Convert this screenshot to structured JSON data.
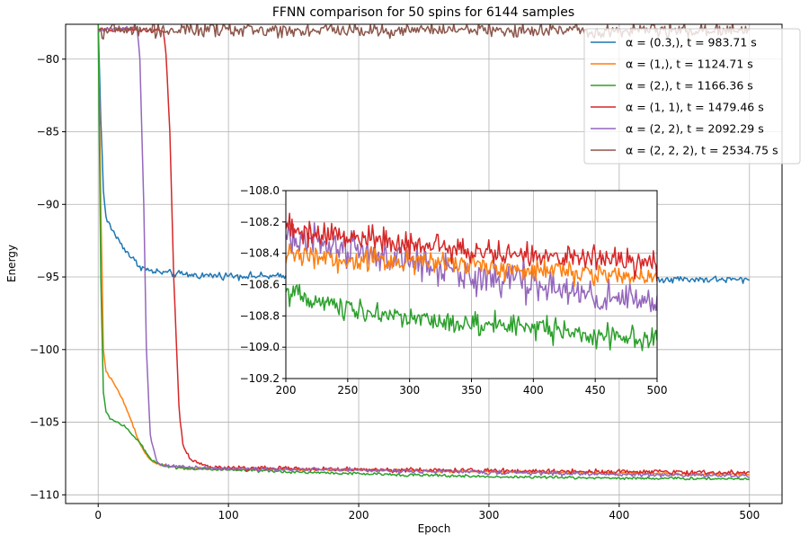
{
  "chart_data": [
    {
      "id": "main",
      "type": "line",
      "title": "FFNN comparison for 50 spins for 6144 samples",
      "xlabel": "Epoch",
      "ylabel": "Energy",
      "xlim": [
        -25,
        525
      ],
      "ylim": [
        -110.6,
        -77.6
      ],
      "xticks": [
        0,
        100,
        200,
        300,
        400,
        500
      ],
      "xtick_labels": [
        "0",
        "100",
        "200",
        "300",
        "400",
        "500"
      ],
      "yticks": [
        -80,
        -85,
        -90,
        -95,
        -100,
        -105,
        -110
      ],
      "ytick_labels": [
        "−80",
        "−85",
        "−90",
        "−95",
        "−100",
        "−105",
        "−110"
      ],
      "grid": true,
      "legend_position": "top-right",
      "series": [
        {
          "name": "α = (0.3,), t = 983.71 s",
          "color": "#1f77b4",
          "points": [
            [
              0,
              -77.5
            ],
            [
              2,
              -84
            ],
            [
              4,
              -89
            ],
            [
              6,
              -91
            ],
            [
              10,
              -91.6
            ],
            [
              15,
              -92.4
            ],
            [
              20,
              -93
            ],
            [
              25,
              -93.6
            ],
            [
              30,
              -94.1
            ],
            [
              35,
              -94.4
            ],
            [
              40,
              -94.6
            ],
            [
              50,
              -94.7
            ],
            [
              60,
              -94.8
            ],
            [
              80,
              -94.9
            ],
            [
              100,
              -94.9
            ],
            [
              150,
              -95
            ],
            [
              200,
              -95
            ],
            [
              250,
              -95
            ],
            [
              300,
              -95.05
            ],
            [
              350,
              -95.1
            ],
            [
              400,
              -95.1
            ],
            [
              450,
              -95.15
            ],
            [
              500,
              -95.2
            ]
          ],
          "noise": 0.15
        },
        {
          "name": "α = (1,), t = 1124.71 s",
          "color": "#ff7f0e",
          "points": [
            [
              0,
              -77.5
            ],
            [
              2,
              -90
            ],
            [
              4,
              -100
            ],
            [
              6,
              -101.5
            ],
            [
              10,
              -102
            ],
            [
              15,
              -102.8
            ],
            [
              20,
              -103.7
            ],
            [
              25,
              -104.8
            ],
            [
              30,
              -106
            ],
            [
              35,
              -107
            ],
            [
              40,
              -107.6
            ],
            [
              50,
              -108
            ],
            [
              70,
              -108.2
            ],
            [
              100,
              -108.2
            ],
            [
              200,
              -108.3
            ],
            [
              300,
              -108.4
            ],
            [
              400,
              -108.5
            ],
            [
              500,
              -108.6
            ]
          ],
          "noise": 0.06
        },
        {
          "name": "α = (2,), t = 1166.36 s",
          "color": "#2ca02c",
          "points": [
            [
              0,
              -77.5
            ],
            [
              2,
              -95
            ],
            [
              4,
              -103
            ],
            [
              6,
              -104.3
            ],
            [
              10,
              -104.8
            ],
            [
              15,
              -105
            ],
            [
              20,
              -105.3
            ],
            [
              30,
              -106.2
            ],
            [
              40,
              -107.5
            ],
            [
              50,
              -108
            ],
            [
              70,
              -108.2
            ],
            [
              100,
              -108.3
            ],
            [
              200,
              -108.55
            ],
            [
              300,
              -108.75
            ],
            [
              400,
              -108.85
            ],
            [
              500,
              -108.9
            ]
          ],
          "noise": 0.06
        },
        {
          "name": "α = (1, 1), t = 1479.46 s",
          "color": "#d62728",
          "points": [
            [
              0,
              -78
            ],
            [
              20,
              -78
            ],
            [
              40,
              -78
            ],
            [
              50,
              -78.1
            ],
            [
              52,
              -79.5
            ],
            [
              55,
              -85
            ],
            [
              58,
              -95
            ],
            [
              62,
              -104
            ],
            [
              65,
              -106.5
            ],
            [
              70,
              -107.5
            ],
            [
              80,
              -108
            ],
            [
              100,
              -108.15
            ],
            [
              200,
              -108.25
            ],
            [
              300,
              -108.35
            ],
            [
              400,
              -108.4
            ],
            [
              500,
              -108.5
            ]
          ],
          "noise": 0.1
        },
        {
          "name": "α = (2, 2), t = 2092.29 s",
          "color": "#9467bd",
          "points": [
            [
              0,
              -78
            ],
            [
              20,
              -77.9
            ],
            [
              28,
              -77.8
            ],
            [
              30,
              -78
            ],
            [
              32,
              -80
            ],
            [
              35,
              -90
            ],
            [
              37,
              -100
            ],
            [
              40,
              -106
            ],
            [
              45,
              -107.7
            ],
            [
              50,
              -108
            ],
            [
              100,
              -108.2
            ],
            [
              200,
              -108.3
            ],
            [
              300,
              -108.45
            ],
            [
              400,
              -108.6
            ],
            [
              500,
              -108.7
            ]
          ],
          "noise": 0.08
        },
        {
          "name": "α = (2, 2, 2), t = 2534.75 s",
          "color": "#8c564b",
          "points": [
            [
              0,
              -78
            ],
            [
              100,
              -78
            ],
            [
              200,
              -78
            ],
            [
              300,
              -78
            ],
            [
              400,
              -78
            ],
            [
              500,
              -78
            ]
          ],
          "noise": 0.3
        }
      ]
    },
    {
      "id": "inset",
      "type": "line",
      "xlim": [
        200,
        500
      ],
      "ylim": [
        -109.2,
        -108.0
      ],
      "xticks": [
        200,
        250,
        300,
        350,
        400,
        450,
        500
      ],
      "xtick_labels": [
        "200",
        "250",
        "300",
        "350",
        "400",
        "450",
        "500"
      ],
      "yticks": [
        -108.0,
        -108.2,
        -108.4,
        -108.6,
        -108.8,
        -109.0,
        -109.2
      ],
      "ytick_labels": [
        "−108.0",
        "−108.2",
        "−108.4",
        "−108.6",
        "−108.8",
        "−109.0",
        "−109.2"
      ],
      "grid": true,
      "series": [
        {
          "color": "#9467bd",
          "points": [
            [
              200,
              -108.3
            ],
            [
              250,
              -108.38
            ],
            [
              300,
              -108.45
            ],
            [
              350,
              -108.55
            ],
            [
              400,
              -108.6
            ],
            [
              450,
              -108.68
            ],
            [
              500,
              -108.72
            ]
          ],
          "noise": 0.07
        },
        {
          "color": "#ff7f0e",
          "points": [
            [
              200,
              -108.4
            ],
            [
              250,
              -108.45
            ],
            [
              300,
              -108.45
            ],
            [
              350,
              -108.48
            ],
            [
              400,
              -108.5
            ],
            [
              450,
              -108.53
            ],
            [
              500,
              -108.55
            ]
          ],
          "noise": 0.045
        },
        {
          "color": "#d62728",
          "points": [
            [
              200,
              -108.25
            ],
            [
              250,
              -108.3
            ],
            [
              300,
              -108.35
            ],
            [
              350,
              -108.38
            ],
            [
              400,
              -108.42
            ],
            [
              450,
              -108.44
            ],
            [
              500,
              -108.48
            ]
          ],
          "noise": 0.05
        },
        {
          "color": "#2ca02c",
          "points": [
            [
              200,
              -108.65
            ],
            [
              250,
              -108.75
            ],
            [
              300,
              -108.82
            ],
            [
              350,
              -108.85
            ],
            [
              400,
              -108.88
            ],
            [
              450,
              -108.92
            ],
            [
              500,
              -108.95
            ]
          ],
          "noise": 0.045
        }
      ]
    }
  ]
}
